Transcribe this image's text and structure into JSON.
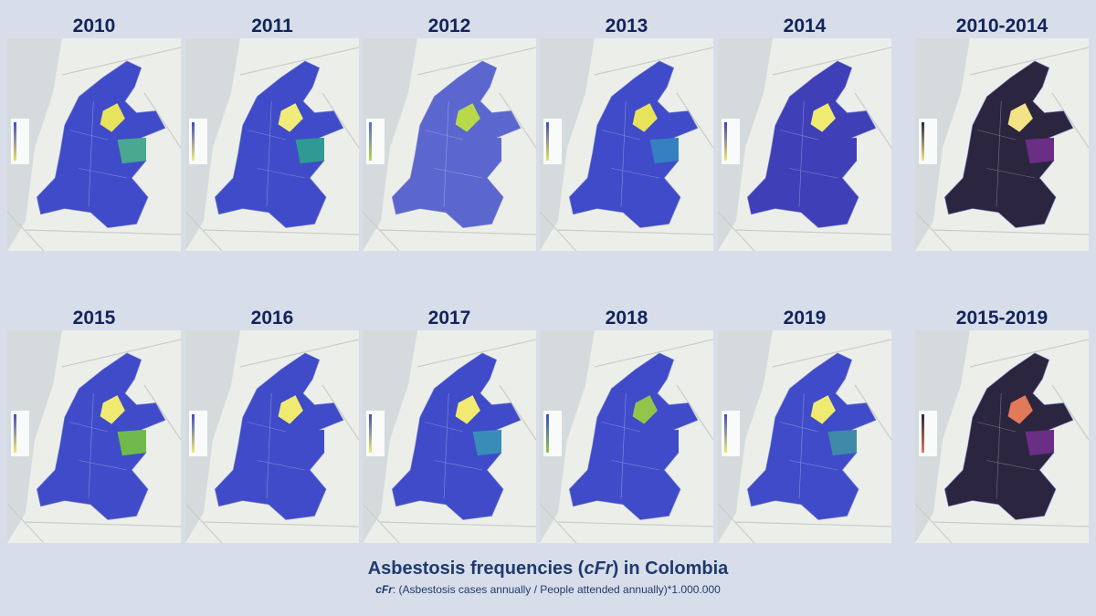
{
  "panels": [
    {
      "title": "2010"
    },
    {
      "title": "2011"
    },
    {
      "title": "2012"
    },
    {
      "title": "2013"
    },
    {
      "title": "2014"
    },
    {
      "title": "2010-2014"
    },
    {
      "title": "2015"
    },
    {
      "title": "2016"
    },
    {
      "title": "2017"
    },
    {
      "title": "2018"
    },
    {
      "title": "2019"
    },
    {
      "title": "2015-2019"
    }
  ],
  "caption": {
    "title_parts": [
      "Asbestosis frequencies (",
      "cFr",
      ") in Colombia"
    ],
    "subtitle_parts": [
      "cFr",
      ": (Asbestosis cases annually / People attended annually)*1.000.000"
    ]
  }
}
